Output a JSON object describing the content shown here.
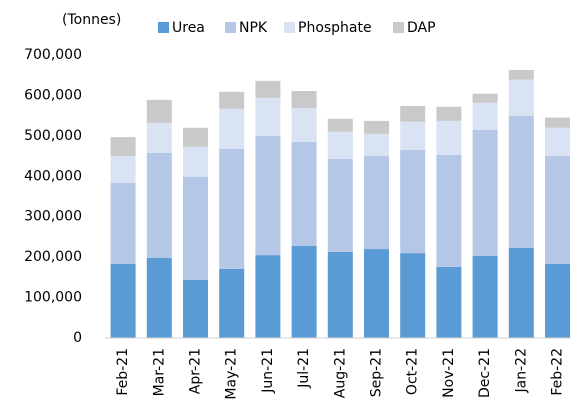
{
  "chart_data": {
    "type": "stacked_bar",
    "unit_label": "(Tonnes)",
    "categories": [
      "Feb-21",
      "Mar-21",
      "Apr-21",
      "May-21",
      "Jun-21",
      "Jul-21",
      "Aug-21",
      "Sep-21",
      "Oct-21",
      "Nov-21",
      "Dec-21",
      "Jan-22",
      "Feb-22"
    ],
    "series": [
      {
        "name": "Urea",
        "color": "#5b9bd5",
        "values": [
          183000,
          198000,
          144000,
          171000,
          205000,
          228000,
          213000,
          220000,
          210000,
          176000,
          203000,
          223000,
          183000
        ]
      },
      {
        "name": "NPK",
        "color": "#b4c7e7",
        "values": [
          201000,
          260000,
          255000,
          297000,
          295000,
          257000,
          230000,
          230000,
          255000,
          277000,
          312000,
          327000,
          267000
        ]
      },
      {
        "name": "Phosphate",
        "color": "#dae3f3",
        "values": [
          66000,
          74000,
          74000,
          99000,
          94000,
          84000,
          67000,
          55000,
          70000,
          84000,
          67000,
          89000,
          70000
        ]
      },
      {
        "name": "DAP",
        "color": "#c9c9c9",
        "values": [
          47000,
          57000,
          47000,
          42000,
          42000,
          42000,
          32000,
          32000,
          39000,
          35000,
          22000,
          24000,
          25000
        ]
      }
    ],
    "ylim": [
      0,
      700000
    ],
    "yticks": [
      0,
      {
        "value": 100000,
        "label": "100,000"
      },
      {
        "value": 200000,
        "label": "200,000"
      },
      {
        "value": 300000,
        "label": "300,000"
      },
      {
        "value": 400000,
        "label": "400,000"
      },
      {
        "value": 500000,
        "label": "500,000"
      },
      {
        "value": 600000,
        "label": "600,000"
      },
      {
        "value": 700000,
        "label": "700,000"
      }
    ],
    "legend": "top"
  }
}
